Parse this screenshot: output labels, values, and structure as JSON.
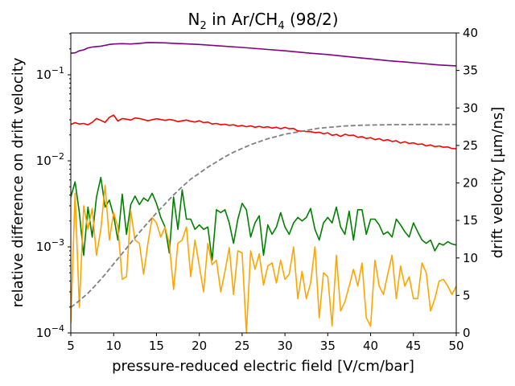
{
  "chart_data": {
    "type": "line",
    "title": "N₂ in Ar/CH₄ (98/2)",
    "xlabel": "pressure-reduced electric field [V/cm/bar]",
    "ylabel": "relative difference on drift velocity",
    "y2label": "drift velocity [μm/ns]",
    "xlim": [
      5,
      50
    ],
    "ylim": [
      0.0001,
      0.3
    ],
    "yscale": "log",
    "y2lim": [
      0,
      40
    ],
    "x_ticks": [
      "5",
      "10",
      "15",
      "20",
      "25",
      "30",
      "35",
      "40",
      "45",
      "50"
    ],
    "x_tick_values": [
      5,
      10,
      15,
      20,
      25,
      30,
      35,
      40,
      45,
      50
    ],
    "y_ticks": [
      {
        "value": 0.1,
        "base": "10",
        "exp": "−1"
      },
      {
        "value": 0.01,
        "base": "10",
        "exp": "−2"
      },
      {
        "value": 0.001,
        "base": "10",
        "exp": "−3"
      },
      {
        "value": 0.0001,
        "base": "10",
        "exp": "−4"
      }
    ],
    "y2_ticks": [
      "0",
      "5",
      "10",
      "15",
      "20",
      "25",
      "30",
      "35",
      "40"
    ],
    "y2_tick_values": [
      0,
      5,
      10,
      15,
      20,
      25,
      30,
      35,
      40
    ],
    "series": [
      {
        "name": "purple",
        "color": "#800080",
        "axis": "left",
        "x": [
          5,
          5.5,
          6,
          6.5,
          7,
          7.5,
          8,
          8.5,
          9,
          9.5,
          10,
          11,
          12,
          13,
          14,
          15,
          16,
          17,
          18,
          20,
          22,
          25,
          28,
          30,
          33,
          35,
          38,
          40,
          42,
          45,
          48,
          50
        ],
        "y": [
          0.178,
          0.18,
          0.19,
          0.195,
          0.205,
          0.21,
          0.213,
          0.215,
          0.22,
          0.225,
          0.228,
          0.23,
          0.228,
          0.232,
          0.237,
          0.236,
          0.235,
          0.232,
          0.23,
          0.225,
          0.218,
          0.208,
          0.197,
          0.19,
          0.178,
          0.172,
          0.16,
          0.153,
          0.146,
          0.138,
          0.13,
          0.127
        ]
      },
      {
        "name": "red",
        "color": "#ff0000",
        "axis": "left",
        "x": [
          5,
          5.5,
          6,
          6.5,
          7,
          7.5,
          8,
          8.5,
          9,
          9.5,
          10,
          10.5,
          11,
          11.5,
          12,
          12.5,
          13,
          13.5,
          14,
          14.5,
          15,
          15.5,
          16,
          16.5,
          17,
          17.5,
          18,
          18.5,
          19,
          19.5,
          20,
          20.5,
          21,
          21.5,
          22,
          22.5,
          23,
          23.5,
          24,
          24.5,
          25,
          25.5,
          26,
          26.5,
          27,
          27.5,
          28,
          28.5,
          29,
          29.5,
          30,
          30.5,
          31,
          31.5,
          32,
          32.5,
          33,
          33.5,
          34,
          34.5,
          35,
          35.5,
          36,
          36.5,
          37,
          37.5,
          38,
          38.5,
          39,
          39.5,
          40,
          40.5,
          41,
          41.5,
          42,
          42.5,
          43,
          43.5,
          44,
          44.5,
          45,
          45.5,
          46,
          46.5,
          47,
          47.5,
          48,
          48.5,
          49,
          49.5,
          50
        ],
        "y": [
          0.0265,
          0.0278,
          0.0268,
          0.0272,
          0.0262,
          0.028,
          0.031,
          0.0295,
          0.028,
          0.032,
          0.034,
          0.029,
          0.031,
          0.0305,
          0.0298,
          0.0315,
          0.031,
          0.0302,
          0.0292,
          0.03,
          0.0308,
          0.0302,
          0.0295,
          0.0302,
          0.0297,
          0.0285,
          0.0292,
          0.0298,
          0.0288,
          0.0283,
          0.0292,
          0.0278,
          0.0282,
          0.0268,
          0.0272,
          0.0263,
          0.0266,
          0.0259,
          0.0262,
          0.0253,
          0.0258,
          0.0249,
          0.0255,
          0.0246,
          0.0251,
          0.0244,
          0.0249,
          0.024,
          0.0246,
          0.0236,
          0.0245,
          0.0236,
          0.0238,
          0.0222,
          0.0222,
          0.0219,
          0.0218,
          0.0213,
          0.0215,
          0.0206,
          0.0212,
          0.0198,
          0.0203,
          0.0192,
          0.0204,
          0.0197,
          0.0199,
          0.0188,
          0.0191,
          0.0182,
          0.0186,
          0.0176,
          0.0181,
          0.0172,
          0.0176,
          0.0168,
          0.0171,
          0.0161,
          0.0167,
          0.0159,
          0.0162,
          0.0155,
          0.0157,
          0.0149,
          0.0153,
          0.0146,
          0.0149,
          0.0144,
          0.0145,
          0.0139,
          0.0138
        ]
      },
      {
        "name": "green",
        "color": "#008000",
        "axis": "left",
        "x": [
          5,
          5.5,
          6,
          6.5,
          7,
          7.5,
          8,
          8.5,
          9,
          9.5,
          10,
          10.5,
          11,
          11.5,
          12,
          12.5,
          13,
          13.5,
          14,
          14.5,
          15,
          15.5,
          16,
          16.5,
          17,
          17.5,
          18,
          18.5,
          19,
          19.5,
          20,
          20.5,
          21,
          21.5,
          22,
          22.5,
          23,
          23.5,
          24,
          24.5,
          25,
          25.5,
          26,
          26.5,
          27,
          27.5,
          28,
          28.5,
          29,
          29.5,
          30,
          30.5,
          31,
          31.5,
          32,
          32.5,
          33,
          33.5,
          34,
          34.5,
          35,
          35.5,
          36,
          36.5,
          37,
          37.5,
          38,
          38.5,
          39,
          39.5,
          40,
          40.5,
          41,
          41.5,
          42,
          42.5,
          43,
          43.5,
          44,
          44.5,
          45,
          45.5,
          46,
          46.5,
          47,
          47.5,
          48,
          48.5,
          49,
          49.5,
          50
        ],
        "y": [
          0.0038,
          0.0057,
          0.0025,
          0.0008,
          0.0029,
          0.0013,
          0.0038,
          0.0064,
          0.0029,
          0.0035,
          0.0023,
          0.0012,
          0.0041,
          0.0014,
          0.0031,
          0.0039,
          0.0031,
          0.0037,
          0.0034,
          0.0042,
          0.0032,
          0.0022,
          0.0017,
          0.00085,
          0.0038,
          0.0016,
          0.0046,
          0.0021,
          0.0021,
          0.0016,
          0.0018,
          0.0016,
          0.0017,
          0.0007,
          0.0027,
          0.0025,
          0.0027,
          0.0019,
          0.0011,
          0.0021,
          0.0032,
          0.0027,
          0.0013,
          0.0019,
          0.0023,
          0.0008,
          0.0018,
          0.0014,
          0.0017,
          0.0025,
          0.0017,
          0.0014,
          0.0019,
          0.0022,
          0.002,
          0.0022,
          0.0028,
          0.0016,
          0.0012,
          0.0019,
          0.0022,
          0.0019,
          0.0029,
          0.0017,
          0.0014,
          0.0026,
          0.0012,
          0.0027,
          0.0027,
          0.0014,
          0.0021,
          0.0021,
          0.0018,
          0.0014,
          0.0015,
          0.0013,
          0.0021,
          0.0018,
          0.0015,
          0.0013,
          0.0019,
          0.0015,
          0.0012,
          0.0011,
          0.0012,
          0.0009,
          0.0011,
          0.00105,
          0.00115,
          0.00108,
          0.00105
        ]
      },
      {
        "name": "orange",
        "color": "#ffa500",
        "axis": "left",
        "x": [
          5,
          5.5,
          6,
          6.5,
          7,
          7.5,
          8,
          8.5,
          9,
          9.5,
          10,
          10.5,
          11,
          11.5,
          12,
          12.5,
          13,
          13.5,
          14,
          14.5,
          15,
          15.5,
          16,
          16.5,
          17,
          17.5,
          18,
          18.5,
          19,
          19.5,
          20,
          20.5,
          21,
          21.5,
          22,
          22.5,
          23,
          23.5,
          24,
          24.5,
          25,
          25.5,
          26,
          26.5,
          27,
          27.5,
          28,
          28.5,
          29,
          29.5,
          30,
          30.5,
          31,
          31.5,
          32,
          32.5,
          33,
          33.5,
          34,
          34.5,
          35,
          35.5,
          36,
          36.5,
          37,
          37.5,
          38,
          38.5,
          39,
          39.5,
          40,
          40.5,
          41,
          41.5,
          42,
          42.5,
          43,
          43.5,
          44,
          44.5,
          45,
          45.5,
          46,
          46.5,
          47,
          47.5,
          48,
          48.5,
          49,
          49.5,
          50
        ],
        "y": [
          0.00013,
          0.0042,
          0.0002,
          0.003,
          0.0016,
          0.0028,
          0.0008,
          0.0016,
          0.0052,
          0.0012,
          0.0025,
          0.0017,
          0.00042,
          0.00045,
          0.0026,
          0.0012,
          0.0011,
          0.00048,
          0.0011,
          0.0022,
          0.0019,
          0.0013,
          0.0017,
          0.0011,
          0.00032,
          0.0011,
          0.0012,
          0.0017,
          0.00045,
          0.0012,
          0.0006,
          0.0003,
          0.0011,
          0.00062,
          0.0007,
          0.0003,
          0.00052,
          0.00098,
          0.00028,
          0.0009,
          0.00085,
          0.0001,
          0.0009,
          0.00055,
          0.00083,
          0.00036,
          0.0006,
          0.00065,
          0.00038,
          0.0007,
          0.00042,
          0.00048,
          0.001,
          0.00025,
          0.00052,
          0.00025,
          0.00038,
          0.001,
          0.00015,
          0.0005,
          0.00045,
          0.00012,
          0.0008,
          0.00018,
          0.00023,
          0.00035,
          0.00055,
          0.00035,
          0.00065,
          0.00015,
          0.00012,
          0.0007,
          0.00035,
          0.00028,
          0.00048,
          0.0008,
          0.00025,
          0.0006,
          0.00035,
          0.00045,
          0.00025,
          0.00025,
          0.00065,
          0.0005,
          0.00018,
          0.00025,
          0.0004,
          0.00042,
          0.00035,
          0.00028,
          0.00035
        ]
      },
      {
        "name": "drift velocity",
        "color": "#808080",
        "dashed": true,
        "axis": "right",
        "x": [
          5,
          6,
          7,
          8,
          9,
          10,
          11,
          12,
          13,
          14,
          15,
          16,
          17,
          18,
          19,
          20,
          21,
          22,
          23,
          24,
          25,
          26,
          27,
          28,
          29,
          30,
          31,
          32,
          33,
          34,
          35,
          36,
          37,
          38,
          39,
          40,
          41,
          42,
          43,
          44,
          45,
          46,
          47,
          48,
          49,
          50
        ],
        "y": [
          3.4,
          4.3,
          5.3,
          6.5,
          7.8,
          9.2,
          10.6,
          12.0,
          13.4,
          14.7,
          16.0,
          17.2,
          18.4,
          19.5,
          20.5,
          21.3,
          22.1,
          22.8,
          23.5,
          24.1,
          24.6,
          25.1,
          25.5,
          25.9,
          26.2,
          26.5,
          26.7,
          26.9,
          27.1,
          27.3,
          27.4,
          27.5,
          27.6,
          27.65,
          27.7,
          27.72,
          27.74,
          27.76,
          27.78,
          27.79,
          27.8,
          27.8,
          27.8,
          27.8,
          27.8,
          27.8
        ]
      }
    ]
  }
}
